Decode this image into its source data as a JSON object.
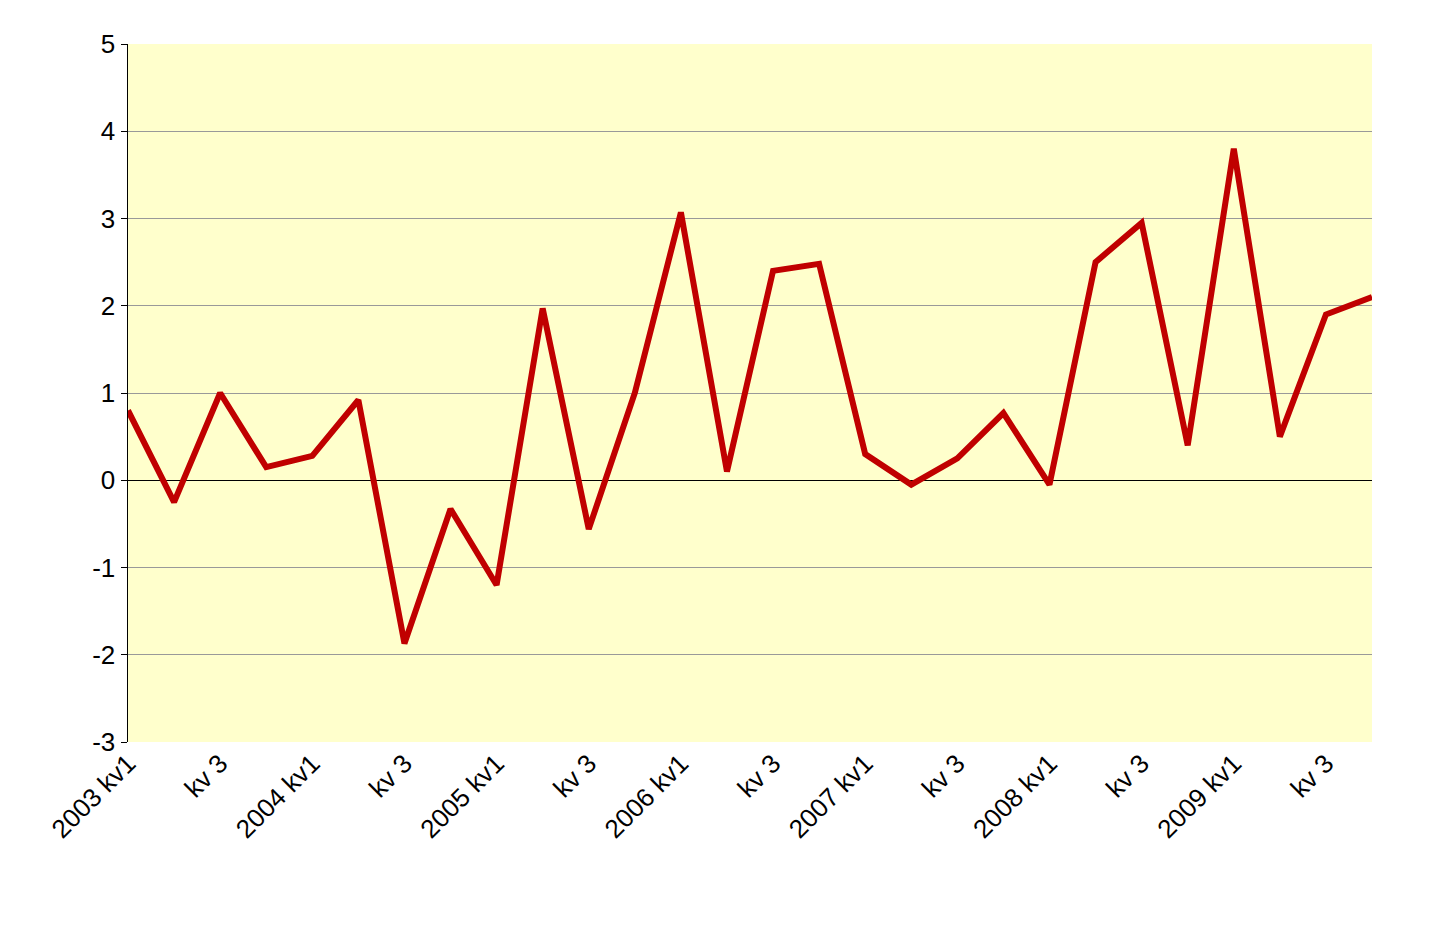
{
  "chart_data": {
    "type": "line",
    "categories": [
      "2003 kv1",
      null,
      "kv 3",
      null,
      "2004 kv1",
      null,
      "kv 3",
      null,
      "2005 kv1",
      null,
      "kv 3",
      null,
      "2006 kv1",
      null,
      "kv 3",
      null,
      "2007 kv1",
      null,
      "kv 3",
      null,
      "2008 kv1",
      null,
      "kv 3",
      null,
      "2009 kv1",
      null,
      "kv 3",
      null
    ],
    "values": [
      0.8,
      -0.25,
      1.0,
      0.15,
      0.28,
      0.92,
      -1.87,
      -0.33,
      -1.2,
      1.97,
      -0.56,
      1.0,
      3.07,
      0.1,
      2.4,
      2.48,
      0.3,
      -0.05,
      0.25,
      0.77,
      -0.05,
      2.5,
      2.95,
      0.4,
      3.8,
      0.5,
      1.9,
      2.1
    ],
    "color": "#c00000",
    "ylim": [
      -3,
      5
    ],
    "yticks": [
      -3,
      -2,
      -1,
      0,
      1,
      2,
      3,
      4,
      5
    ],
    "grid": true
  }
}
